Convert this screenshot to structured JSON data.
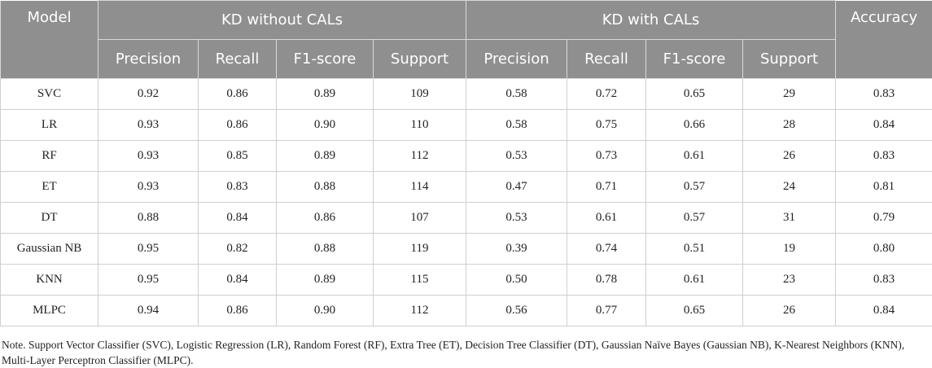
{
  "table": {
    "headers": {
      "model": "Model",
      "group1": "KD without CALs",
      "group2": "KD with CALs",
      "accuracy": "Accuracy",
      "sub": [
        "Precision",
        "Recall",
        "F1-score",
        "Support",
        "Precision",
        "Recall",
        "F1-score",
        "Support"
      ]
    },
    "rows": [
      [
        "SVC",
        "0.92",
        "0.86",
        "0.89",
        "109",
        "0.58",
        "0.72",
        "0.65",
        "29",
        "0.83"
      ],
      [
        "LR",
        "0.93",
        "0.86",
        "0.90",
        "110",
        "0.58",
        "0.75",
        "0.66",
        "28",
        "0.84"
      ],
      [
        "RF",
        "0.93",
        "0.85",
        "0.89",
        "112",
        "0.53",
        "0.73",
        "0.61",
        "26",
        "0.83"
      ],
      [
        "ET",
        "0.93",
        "0.83",
        "0.88",
        "114",
        "0.47",
        "0.71",
        "0.57",
        "24",
        "0.81"
      ],
      [
        "DT",
        "0.88",
        "0.84",
        "0.86",
        "107",
        "0.53",
        "0.61",
        "0.57",
        "31",
        "0.79"
      ],
      [
        "Gaussian NB",
        "0.95",
        "0.82",
        "0.88",
        "119",
        "0.39",
        "0.74",
        "0.51",
        "19",
        "0.80"
      ],
      [
        "KNN",
        "0.95",
        "0.84",
        "0.89",
        "115",
        "0.50",
        "0.78",
        "0.61",
        "23",
        "0.83"
      ],
      [
        "MLPC",
        "0.94",
        "0.86",
        "0.90",
        "112",
        "0.56",
        "0.77",
        "0.65",
        "26",
        "0.84"
      ]
    ]
  },
  "note": "Note. Support Vector Classifier (SVC), Logistic Regression (LR), Random Forest (RF), Extra Tree (ET), Decision Tree Classifier (DT), Gaussian Naïve Bayes (Gaussian NB), K-Nearest Neighbors (KNN), Multi-Layer Perceptron Classifier (MLPC)."
}
